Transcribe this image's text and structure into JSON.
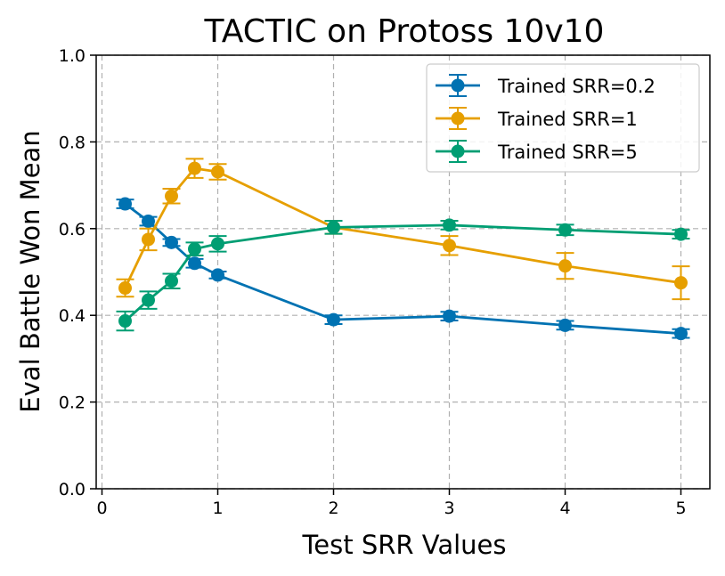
{
  "chart_data": {
    "type": "line",
    "title": "TACTIC on Protoss 10v10",
    "xlabel": "Test SRR Values",
    "ylabel": "Eval Battle Won Mean",
    "xlim": [
      -0.05,
      5.25
    ],
    "ylim": [
      0.0,
      1.0
    ],
    "xticks": [
      0,
      1,
      2,
      3,
      4,
      5
    ],
    "xtick_labels": [
      "0",
      "1",
      "2",
      "3",
      "4",
      "5"
    ],
    "yticks": [
      0.0,
      0.2,
      0.4,
      0.6,
      0.8,
      1.0
    ],
    "ytick_labels": [
      "0.0",
      "0.2",
      "0.4",
      "0.6",
      "0.8",
      "1.0"
    ],
    "grid": true,
    "legend_position": "top-right",
    "x": [
      0.2,
      0.4,
      0.6,
      0.8,
      1,
      2,
      3,
      4,
      5
    ],
    "series": [
      {
        "name": "Trained SRR=0.2",
        "color": "#0072b2",
        "values": [
          0.657,
          0.617,
          0.568,
          0.52,
          0.493,
          0.39,
          0.398,
          0.377,
          0.358
        ],
        "errors": [
          0.01,
          0.01,
          0.008,
          0.01,
          0.008,
          0.01,
          0.01,
          0.01,
          0.01
        ]
      },
      {
        "name": "Trained SRR=1",
        "color": "#e69f00",
        "values": [
          0.463,
          0.575,
          0.675,
          0.739,
          0.731,
          0.603,
          0.561,
          0.514,
          0.475
        ],
        "errors": [
          0.02,
          0.025,
          0.017,
          0.022,
          0.018,
          0.015,
          0.022,
          0.03,
          0.038
        ]
      },
      {
        "name": "Trained SRR=5",
        "color": "#009e73",
        "values": [
          0.387,
          0.435,
          0.479,
          0.553,
          0.565,
          0.603,
          0.608,
          0.597,
          0.587
        ],
        "errors": [
          0.022,
          0.02,
          0.017,
          0.015,
          0.018,
          0.015,
          0.01,
          0.012,
          0.01
        ]
      }
    ]
  }
}
